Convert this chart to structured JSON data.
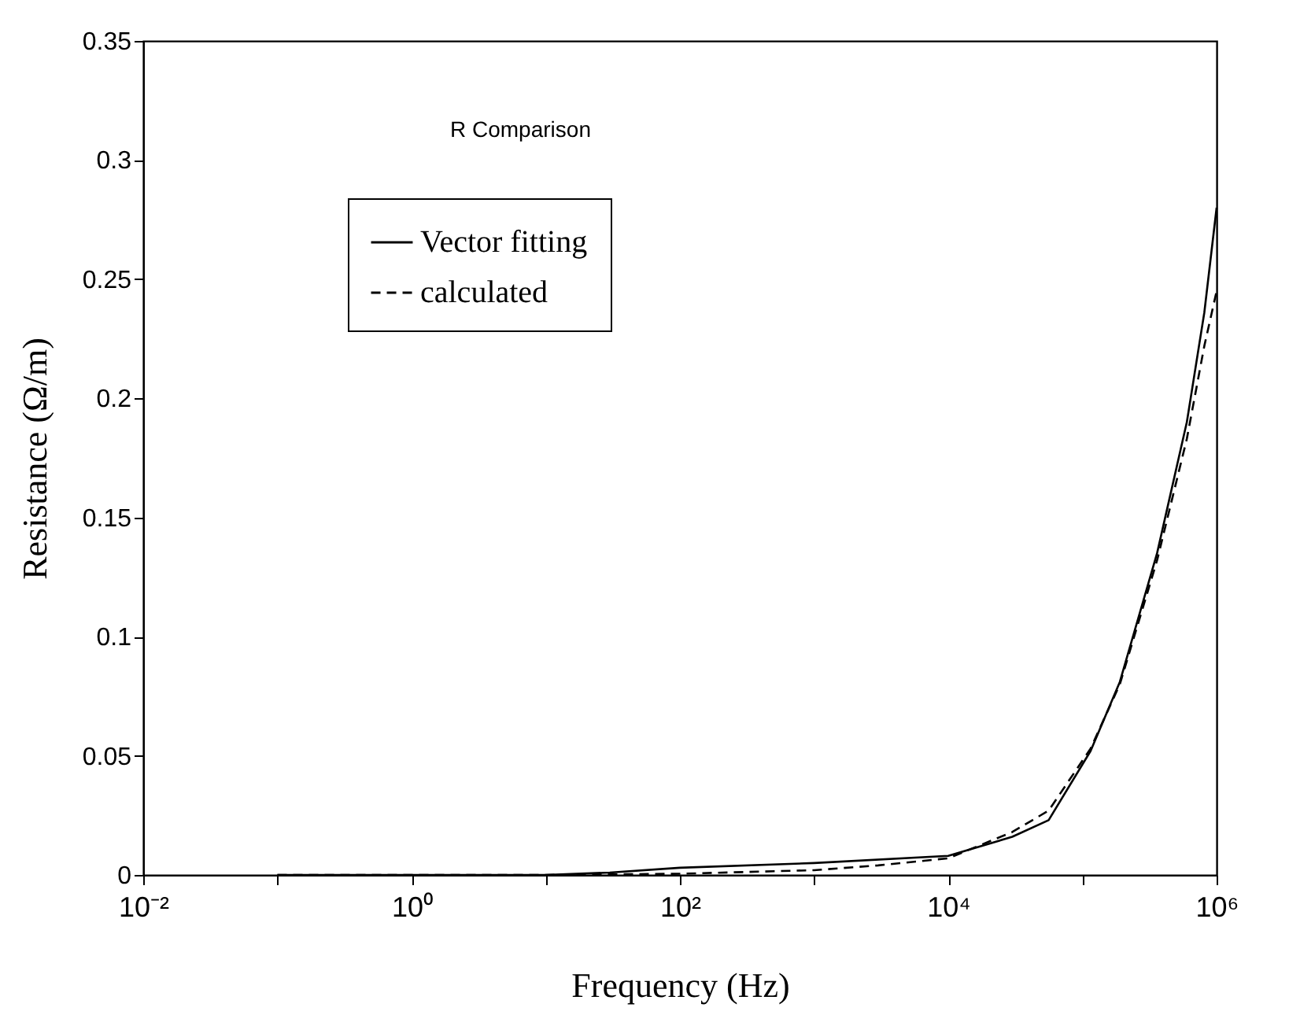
{
  "chart_data": {
    "type": "line",
    "xlabel": "Frequency (Hz)",
    "ylabel": "Resistance (Ω/m)",
    "annotations": [
      "R Comparison"
    ],
    "log": "x",
    "xlim": [
      0.01,
      1000000
    ],
    "ylim": [
      0,
      0.35
    ],
    "xticks": [
      {
        "value": 0.01,
        "label": "10⁻²"
      },
      {
        "value": 0.1,
        "label": null
      },
      {
        "value": 1,
        "label": "10⁰"
      },
      {
        "value": 10,
        "label": null
      },
      {
        "value": 100,
        "label": "10²"
      },
      {
        "value": 1000,
        "label": null
      },
      {
        "value": 10000,
        "label": "10⁴"
      },
      {
        "value": 100000,
        "label": null
      },
      {
        "value": 1000000,
        "label": "10⁶"
      }
    ],
    "yticks": [
      0,
      0.05,
      0.1,
      0.15,
      0.2,
      0.25,
      0.3,
      0.35
    ],
    "grid": false,
    "legend": "top left",
    "marker": "none",
    "series": [
      {
        "name": "Vector fitting",
        "color": "#000000",
        "line_style": "solid",
        "x": [
          0.1,
          1,
          10,
          30,
          100,
          1000,
          10000,
          30000,
          56000,
          115000,
          190000,
          360000,
          600000,
          810000,
          1000000
        ],
        "values": [
          0,
          0,
          0,
          0.001,
          0.003,
          0.005,
          0.008,
          0.016,
          0.023,
          0.052,
          0.081,
          0.135,
          0.19,
          0.236,
          0.28
        ]
      },
      {
        "name": "calculated",
        "color": "#000000",
        "line_style": "dashed",
        "x": [
          0.1,
          1,
          10,
          100,
          1000,
          3000,
          10000,
          30000,
          56000,
          115000,
          190000,
          360000,
          600000,
          810000,
          1000000
        ],
        "values": [
          0,
          0,
          0,
          0.0005,
          0.002,
          0.004,
          0.007,
          0.018,
          0.027,
          0.053,
          0.08,
          0.132,
          0.183,
          0.222,
          0.245
        ]
      }
    ]
  }
}
